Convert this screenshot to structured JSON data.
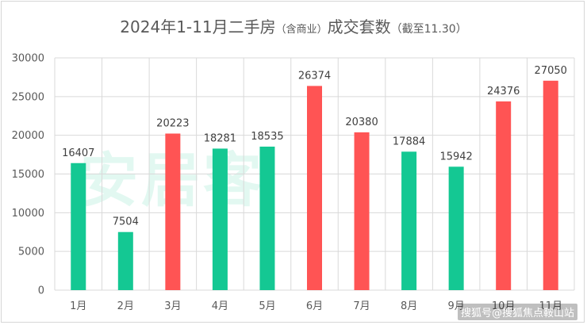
{
  "title": {
    "main": "2024年1-11月二手房",
    "paren": "（含商业）",
    "rest": "成交套数",
    "note": "（截至11.30）"
  },
  "watermark": "安居客",
  "source_tag": "搜狐号@搜狐焦点鞍山站",
  "colors": {
    "green": "#14C893",
    "red": "#FF5454",
    "grid": "#D9D9D9"
  },
  "chart_data": {
    "type": "bar",
    "categories": [
      "1月",
      "2月",
      "3月",
      "4月",
      "5月",
      "6月",
      "7月",
      "8月",
      "9月",
      "10月",
      "11月"
    ],
    "values": [
      16407,
      7504,
      20223,
      18281,
      18535,
      26374,
      20380,
      17884,
      15942,
      24376,
      27050
    ],
    "bar_colors": [
      "green",
      "green",
      "red",
      "green",
      "green",
      "red",
      "red",
      "green",
      "green",
      "red",
      "red"
    ],
    "ylim": [
      0,
      30000
    ],
    "yticks": [
      0,
      5000,
      10000,
      15000,
      20000,
      25000,
      30000
    ],
    "grid": true,
    "legend": false
  }
}
